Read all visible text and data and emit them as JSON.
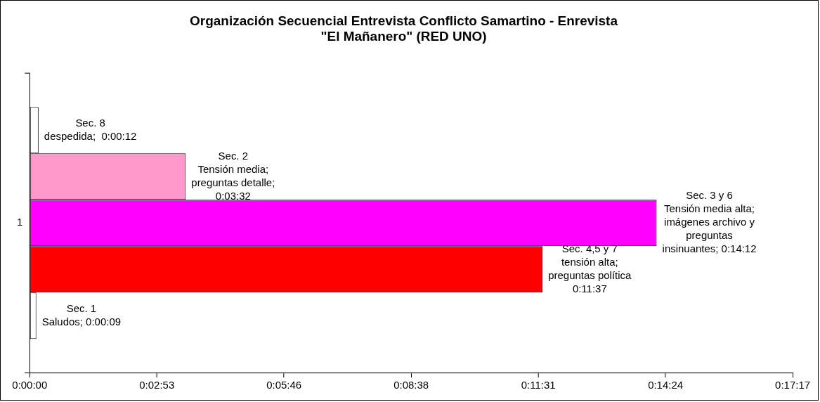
{
  "chart_data": {
    "type": "bar",
    "orientation": "horizontal",
    "title": "Organización Secuencial Entrevista Conflicto Samartino - Enrevista\n\"El Mañanero\" (RED UNO)",
    "categories": [
      "1"
    ],
    "series": [
      {
        "color": "#ffffff",
        "values": [
          12
        ],
        "value_labels": [
          "Sec. 8\ndespedida;  0:00:12"
        ]
      },
      {
        "color": "#ff99cc",
        "values": [
          212
        ],
        "value_labels": [
          "Sec. 2\nTensión media;\npreguntas detalle;\n0:03:32"
        ]
      },
      {
        "color": "#ff00ff",
        "values": [
          852
        ],
        "value_labels": [
          "Sec. 3 y 6\nTensión media alta;\nimágenes archivo y\npreguntas\ninsinuantes; 0:14:12"
        ]
      },
      {
        "color": "#ff0000",
        "values": [
          697
        ],
        "value_labels": [
          "Sec. 4,5 y 7\ntensión alta;\npreguntas política\n0:11:37"
        ]
      },
      {
        "color": "#ffffff",
        "values": [
          9
        ],
        "value_labels": [
          "Sec. 1\nSaludos; 0:00:09"
        ]
      }
    ],
    "xlim": [
      0,
      1036.8
    ],
    "xticks": [
      {
        "value": 0,
        "label": "0:00:00"
      },
      {
        "value": 172.8,
        "label": "0:02:53"
      },
      {
        "value": 345.6,
        "label": "0:05:46"
      },
      {
        "value": 518.4,
        "label": "0:08:38"
      },
      {
        "value": 691.2,
        "label": "0:11:31"
      },
      {
        "value": 864,
        "label": "0:14:24"
      },
      {
        "value": 1036.8,
        "label": "0:17:17"
      }
    ],
    "grid": false,
    "legend": false
  }
}
